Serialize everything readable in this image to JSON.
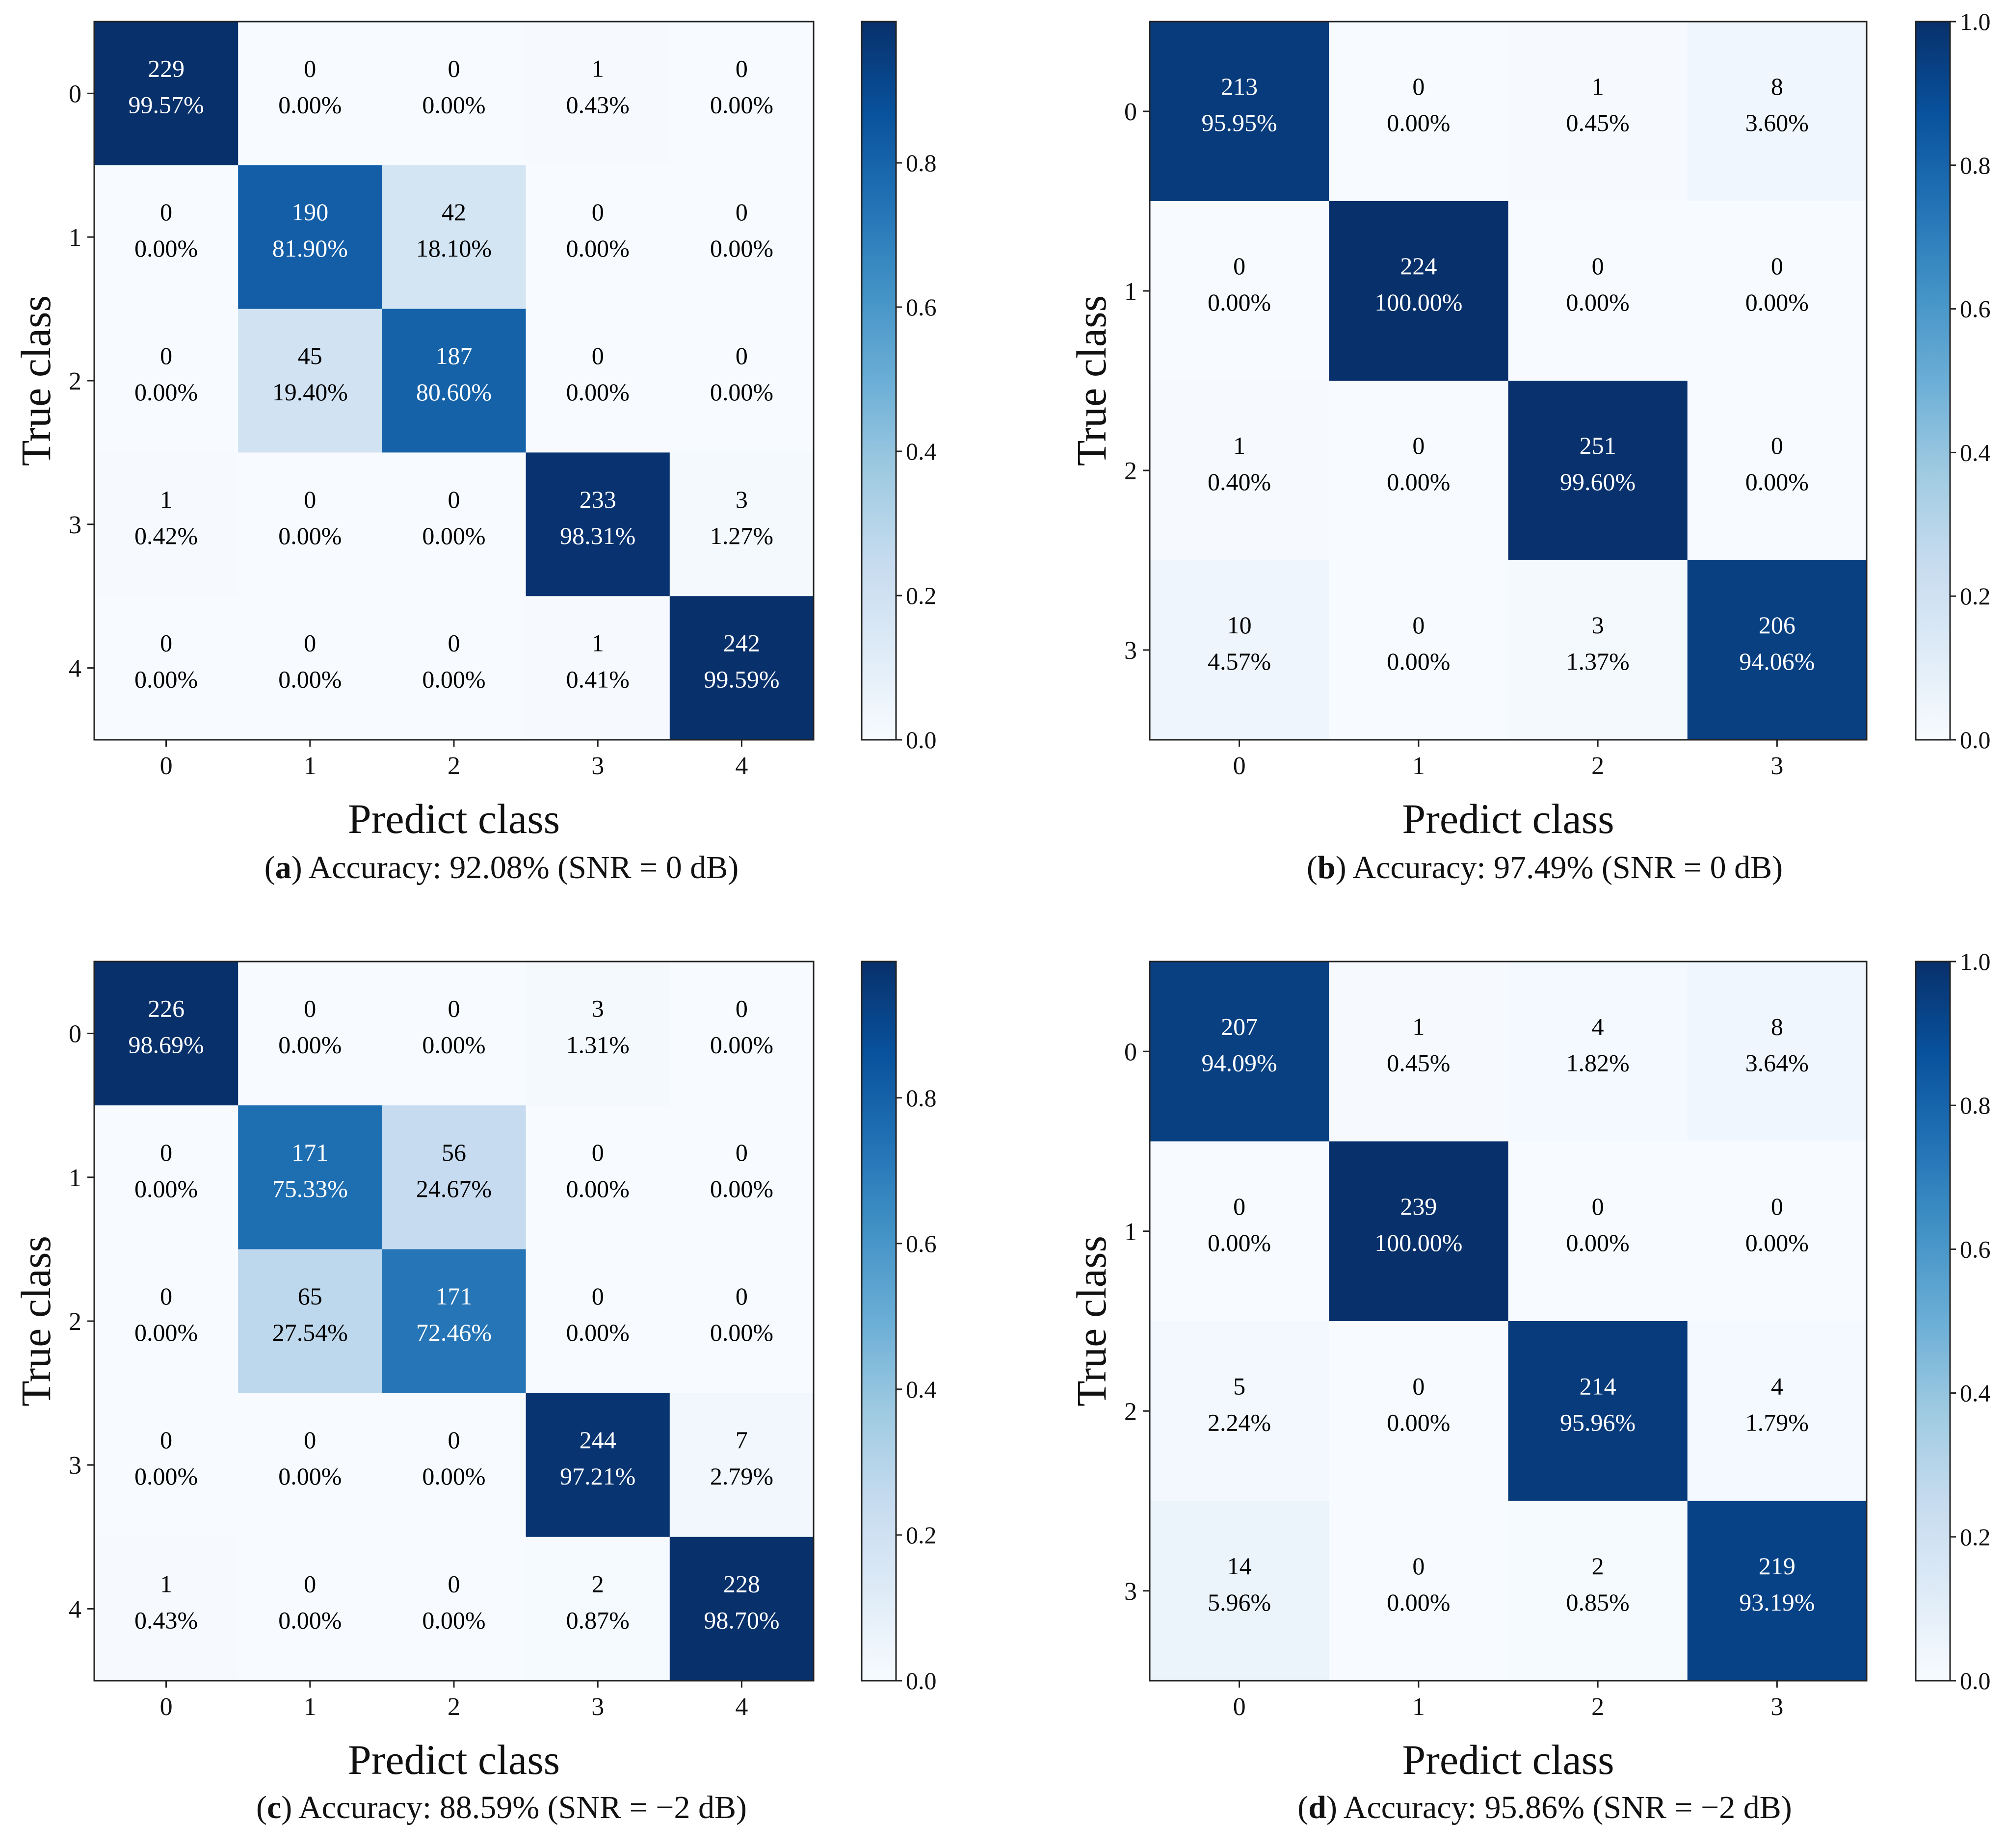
{
  "figure": {
    "panels": [
      {
        "letter": "a",
        "caption_text": " Accuracy: 92.08% (SNR = 0 dB)",
        "chart_data": {
          "type": "heatmap",
          "classes": [
            "0",
            "1",
            "2",
            "3",
            "4"
          ],
          "xlabel": "Predict class",
          "ylabel": "True class",
          "counts": [
            [
              229,
              0,
              0,
              1,
              0
            ],
            [
              0,
              190,
              42,
              0,
              0
            ],
            [
              0,
              45,
              187,
              0,
              0
            ],
            [
              1,
              0,
              0,
              233,
              3
            ],
            [
              0,
              0,
              0,
              1,
              242
            ]
          ],
          "percents": [
            [
              "99.57%",
              "0.00%",
              "0.00%",
              "0.43%",
              "0.00%"
            ],
            [
              "0.00%",
              "81.90%",
              "18.10%",
              "0.00%",
              "0.00%"
            ],
            [
              "0.00%",
              "19.40%",
              "80.60%",
              "0.00%",
              "0.00%"
            ],
            [
              "0.42%",
              "0.00%",
              "0.00%",
              "98.31%",
              "1.27%"
            ],
            [
              "0.00%",
              "0.00%",
              "0.00%",
              "0.41%",
              "99.59%"
            ]
          ],
          "colorbar": {
            "range": [
              0,
              0.9959
            ],
            "ticks": [
              "0.0",
              "0.2",
              "0.4",
              "0.6",
              "0.8"
            ]
          },
          "colormap": "Blues"
        }
      },
      {
        "letter": "b",
        "caption_text": " Accuracy: 97.49% (SNR = 0 dB)",
        "chart_data": {
          "type": "heatmap",
          "classes": [
            "0",
            "1",
            "2",
            "3"
          ],
          "xlabel": "Predict class",
          "ylabel": "True class",
          "counts": [
            [
              213,
              0,
              1,
              8
            ],
            [
              0,
              224,
              0,
              0
            ],
            [
              1,
              0,
              251,
              0
            ],
            [
              10,
              0,
              3,
              206
            ]
          ],
          "percents": [
            [
              "95.95%",
              "0.00%",
              "0.45%",
              "3.60%"
            ],
            [
              "0.00%",
              "100.00%",
              "0.00%",
              "0.00%"
            ],
            [
              "0.40%",
              "0.00%",
              "99.60%",
              "0.00%"
            ],
            [
              "4.57%",
              "0.00%",
              "1.37%",
              "94.06%"
            ]
          ],
          "colorbar": {
            "range": [
              0,
              1.0
            ],
            "ticks": [
              "0.0",
              "0.2",
              "0.4",
              "0.6",
              "0.8",
              "1.0"
            ]
          },
          "colormap": "Blues"
        }
      },
      {
        "letter": "c",
        "caption_text": " Accuracy: 88.59% (SNR = −2 dB)",
        "chart_data": {
          "type": "heatmap",
          "classes": [
            "0",
            "1",
            "2",
            "3",
            "4"
          ],
          "xlabel": "Predict class",
          "ylabel": "True class",
          "counts": [
            [
              226,
              0,
              0,
              3,
              0
            ],
            [
              0,
              171,
              56,
              0,
              0
            ],
            [
              0,
              65,
              171,
              0,
              0
            ],
            [
              0,
              0,
              0,
              244,
              7
            ],
            [
              1,
              0,
              0,
              2,
              228
            ]
          ],
          "percents": [
            [
              "98.69%",
              "0.00%",
              "0.00%",
              "1.31%",
              "0.00%"
            ],
            [
              "0.00%",
              "75.33%",
              "24.67%",
              "0.00%",
              "0.00%"
            ],
            [
              "0.00%",
              "27.54%",
              "72.46%",
              "0.00%",
              "0.00%"
            ],
            [
              "0.00%",
              "0.00%",
              "0.00%",
              "97.21%",
              "2.79%"
            ],
            [
              "0.43%",
              "0.00%",
              "0.00%",
              "0.87%",
              "98.70%"
            ]
          ],
          "colorbar": {
            "range": [
              0,
              0.987
            ],
            "ticks": [
              "0.0",
              "0.2",
              "0.4",
              "0.6",
              "0.8"
            ]
          },
          "colormap": "Blues"
        }
      },
      {
        "letter": "d",
        "caption_text": " Accuracy: 95.86% (SNR = −2 dB)",
        "chart_data": {
          "type": "heatmap",
          "classes": [
            "0",
            "1",
            "2",
            "3"
          ],
          "xlabel": "Predict class",
          "ylabel": "True class",
          "counts": [
            [
              207,
              1,
              4,
              8
            ],
            [
              0,
              239,
              0,
              0
            ],
            [
              5,
              0,
              214,
              4
            ],
            [
              14,
              0,
              2,
              219
            ]
          ],
          "percents": [
            [
              "94.09%",
              "0.45%",
              "1.82%",
              "3.64%"
            ],
            [
              "0.00%",
              "100.00%",
              "0.00%",
              "0.00%"
            ],
            [
              "2.24%",
              "0.00%",
              "95.96%",
              "1.79%"
            ],
            [
              "5.96%",
              "0.00%",
              "0.85%",
              "93.19%"
            ]
          ],
          "colorbar": {
            "range": [
              0,
              1.0
            ],
            "ticks": [
              "0.0",
              "0.2",
              "0.4",
              "0.6",
              "0.8",
              "1.0"
            ]
          },
          "colormap": "Blues"
        }
      }
    ]
  }
}
